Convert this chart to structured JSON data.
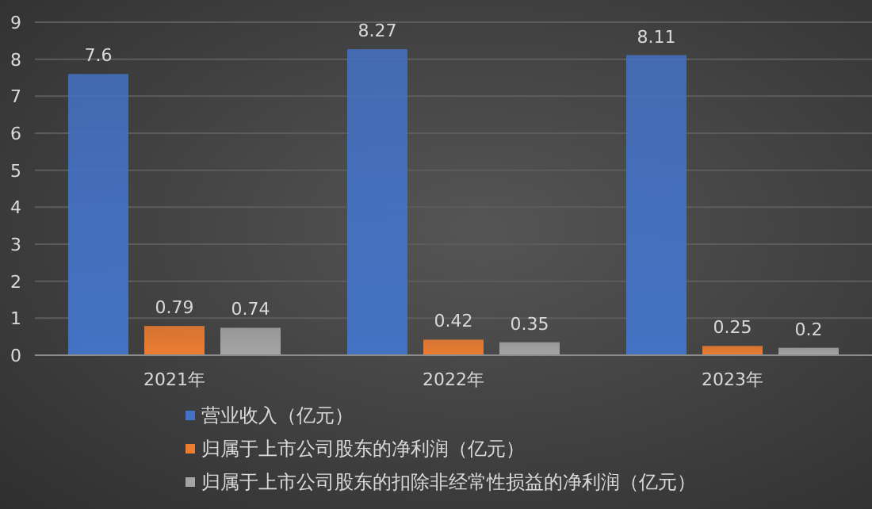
{
  "chart_data": {
    "type": "bar",
    "categories": [
      "2021年",
      "2022年",
      "2023年"
    ],
    "series": [
      {
        "name": "营业收入（亿元）",
        "color": "#4472c4",
        "values": [
          7.6,
          8.27,
          8.11
        ]
      },
      {
        "name": "归属于上市公司股东的净利润（亿元）",
        "color": "#ed7d31",
        "values": [
          0.79,
          0.42,
          0.25
        ]
      },
      {
        "name": "归属于上市公司股东的扣除非经常性损益的净利润（亿元）",
        "color": "#a5a5a5",
        "values": [
          0.74,
          0.35,
          0.2
        ]
      }
    ],
    "ylim": [
      0,
      9
    ],
    "yticks": [
      0,
      1,
      2,
      3,
      4,
      5,
      6,
      7,
      8,
      9
    ],
    "grid": "y",
    "legend": "bottom",
    "data_labels": true
  }
}
